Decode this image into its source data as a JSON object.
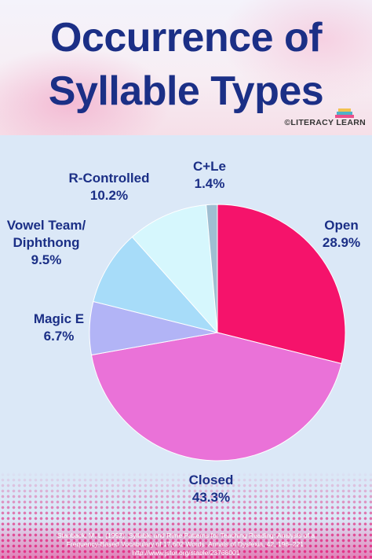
{
  "header": {
    "title_line1": "Occurrence of",
    "title_line2": "Syllable Types",
    "brand": "©LITERACY LEARN"
  },
  "icons": {
    "brand_icon": "books-icon"
  },
  "chart_data": {
    "type": "pie",
    "title": "Occurrence of Syllable Types",
    "start_angle_deg": 0,
    "direction": "clockwise",
    "slices": [
      {
        "label": "Open",
        "value": 28.9,
        "value_label": "28.9%",
        "color": "#f5136b"
      },
      {
        "label": "Closed",
        "value": 43.3,
        "value_label": "43.3%",
        "color": "#ea72d8"
      },
      {
        "label": "Magic E",
        "value": 6.7,
        "value_label": "6.7%",
        "color": "#b2b4f6"
      },
      {
        "label": "Vowel Team/ Diphthong",
        "value": 9.5,
        "value_label": "9.5%",
        "color": "#a7dcf9"
      },
      {
        "label": "R-Controlled",
        "value": 10.2,
        "value_label": "10.2%",
        "color": "#d6f7fd"
      },
      {
        "label": "C+Le",
        "value": 1.4,
        "value_label": "1.4%",
        "color": "#9fbfd2"
      }
    ]
  },
  "labels": {
    "open": {
      "name": "Open",
      "pct": "28.9%"
    },
    "closed": {
      "name": "Closed",
      "pct": "43.3%"
    },
    "magic_e": {
      "name": "Magic E",
      "pct": "6.7%"
    },
    "vowel_team": {
      "name_line1": "Vowel Team/",
      "name_line2": "Diphthong",
      "pct": "9.5%"
    },
    "r_controlled": {
      "name": "R-Controlled",
      "pct": "10.2%"
    },
    "cle": {
      "name": "C+Le",
      "pct": "1.4%"
    }
  },
  "citation": {
    "line1": "Stanback, M. L. (1992). Syllable and Rime Patterns for Teaching Reading: Analysis of a",
    "line2": "Frequency-Based Vocabulary of 17,602 Words. Annals of Dyslexia, 42, 196–221.",
    "line3": "http://www.jstor.org/stable/23768001"
  }
}
